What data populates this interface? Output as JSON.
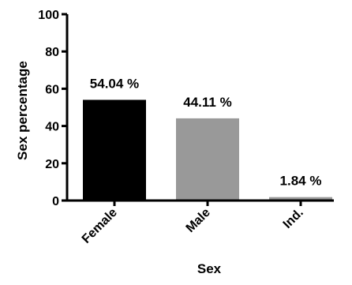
{
  "chart_data": {
    "type": "bar",
    "categories": [
      "Female",
      "Male",
      "Ind."
    ],
    "values": [
      54.04,
      44.11,
      1.84
    ],
    "data_labels": [
      "54.04 %",
      "44.11 %",
      "1.84 %"
    ],
    "colors": [
      "#000000",
      "#999999",
      "#999999"
    ],
    "xlabel": "Sex",
    "ylabel": "Sex percentage",
    "ylim": [
      0,
      100
    ],
    "yticks": [
      0,
      20,
      40,
      60,
      80,
      100
    ],
    "grid": false,
    "legend": "none"
  }
}
